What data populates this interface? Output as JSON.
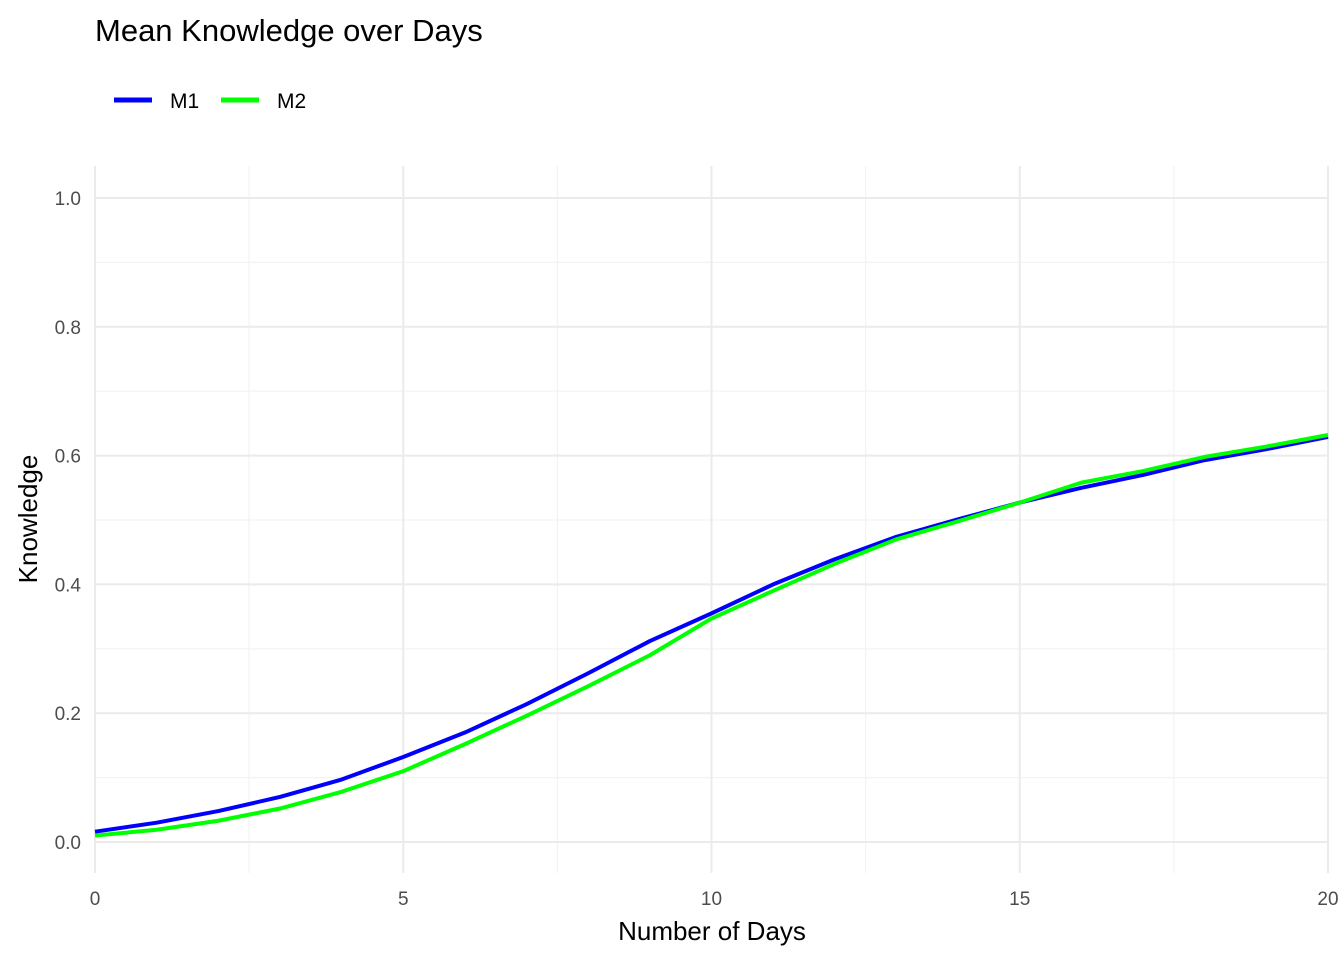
{
  "chart_data": {
    "type": "line",
    "title": "Mean Knowledge over Days",
    "xlabel": "Number of Days",
    "ylabel": "Knowledge",
    "xlim": [
      0,
      20
    ],
    "ylim": [
      0,
      1
    ],
    "x_ticks": [
      "0",
      "5",
      "10",
      "15",
      "20"
    ],
    "y_ticks": [
      "0.0",
      "0.2",
      "0.4",
      "0.6",
      "0.8",
      "1.0"
    ],
    "grid": true,
    "legend_position": "top-left",
    "x": [
      0,
      1,
      2,
      3,
      4,
      5,
      6,
      7,
      8,
      9,
      10,
      11,
      12,
      13,
      14,
      15,
      16,
      17,
      18,
      19,
      20
    ],
    "series": [
      {
        "name": "M1",
        "color": "#0000ff",
        "values": [
          0.016,
          0.03,
          0.048,
          0.07,
          0.097,
          0.132,
          0.17,
          0.214,
          0.262,
          0.312,
          0.355,
          0.4,
          0.439,
          0.474,
          0.501,
          0.527,
          0.55,
          0.57,
          0.593,
          0.61,
          0.629
        ]
      },
      {
        "name": "M2",
        "color": "#00ff00",
        "values": [
          0.01,
          0.019,
          0.033,
          0.052,
          0.078,
          0.11,
          0.152,
          0.196,
          0.242,
          0.29,
          0.347,
          0.39,
          0.432,
          0.47,
          0.498,
          0.527,
          0.558,
          0.576,
          0.598,
          0.614,
          0.632
        ]
      }
    ]
  }
}
